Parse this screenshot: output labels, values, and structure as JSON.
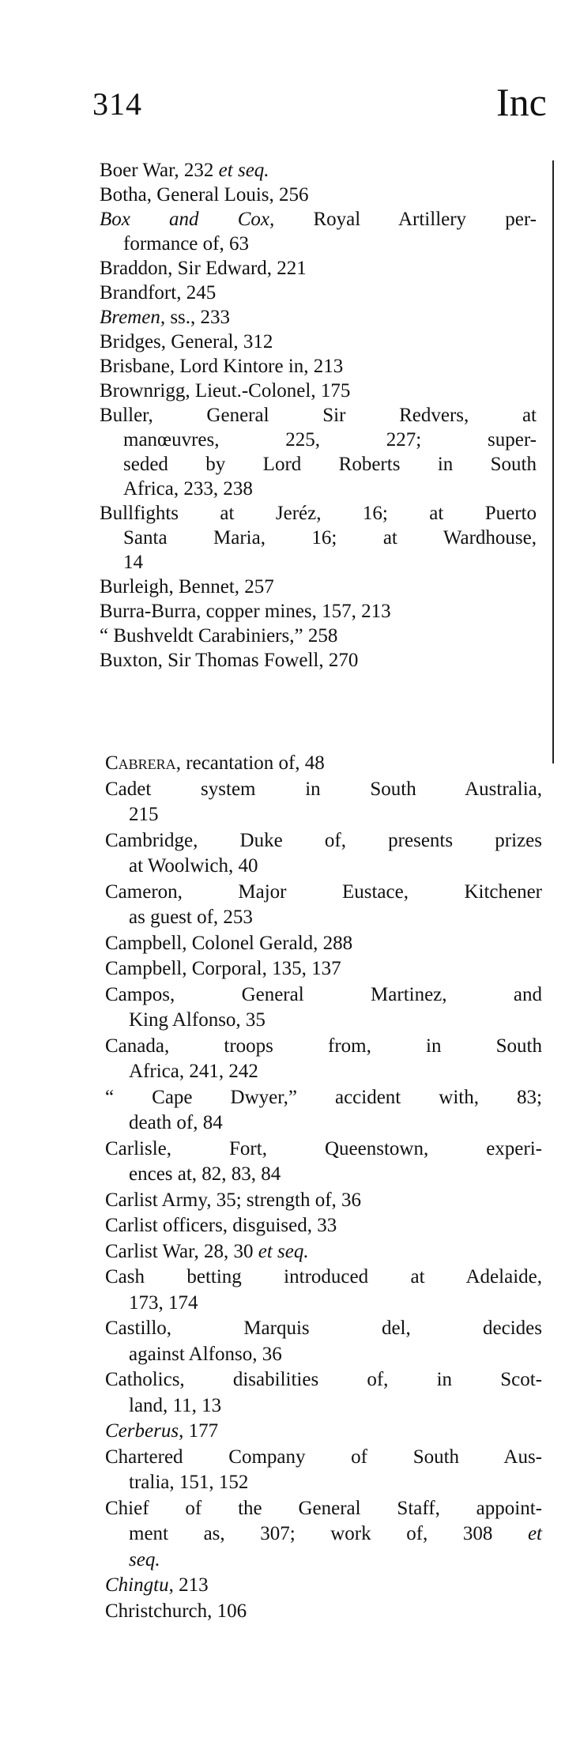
{
  "page_number": "314",
  "running_head": "Inc",
  "sections": [
    {
      "entries": [
        {
          "lines": [
            [
              "Boer War, 232 ",
              {
                "text": "et seq.",
                "italic": true
              }
            ]
          ]
        },
        {
          "lines": [
            [
              "Botha, General Louis, 256"
            ]
          ]
        },
        {
          "lines": [
            [
              {
                "text": "Box and Cox,",
                "italic": true
              },
              " Royal Artillery per-"
            ],
            [
              "formance of, 63"
            ]
          ]
        },
        {
          "lines": [
            [
              "Braddon, Sir Edward, 221"
            ]
          ]
        },
        {
          "lines": [
            [
              "Brandfort, 245"
            ]
          ]
        },
        {
          "lines": [
            [
              {
                "text": "Bremen,",
                "italic": true
              },
              " ss., 233"
            ]
          ]
        },
        {
          "lines": [
            [
              "Bridges, General, 312"
            ]
          ]
        },
        {
          "lines": [
            [
              "Brisbane, Lord Kintore in, 213"
            ]
          ]
        },
        {
          "lines": [
            [
              "Brownrigg, Lieut.-Colonel, 175"
            ]
          ]
        },
        {
          "lines": [
            [
              "Buller, General Sir Redvers, at"
            ],
            [
              "manœuvres, 225, 227; super-"
            ],
            [
              "seded by Lord Roberts in South"
            ],
            [
              "Africa, 233, 238"
            ]
          ]
        },
        {
          "lines": [
            [
              "Bullfights at Jeréz, 16; at Puerto"
            ],
            [
              "Santa Maria, 16; at Wardhouse,"
            ],
            [
              "14"
            ]
          ]
        },
        {
          "lines": [
            [
              "Burleigh, Bennet, 257"
            ]
          ]
        },
        {
          "lines": [
            [
              "Burra-Burra, copper mines, 157, 213"
            ]
          ]
        },
        {
          "lines": [
            [
              "“ Bushveldt Carabiniers,” 258"
            ]
          ]
        },
        {
          "lines": [
            [
              "Buxton, Sir Thomas Fowell, 270"
            ]
          ]
        }
      ]
    },
    {
      "entries": [
        {
          "lines": [
            [
              {
                "text": "Cabrera",
                "smallcaps": true
              },
              ", recantation of, 48"
            ]
          ]
        },
        {
          "lines": [
            [
              "Cadet system in South Australia,"
            ],
            [
              "215"
            ]
          ]
        },
        {
          "lines": [
            [
              "Cambridge, Duke of, presents prizes"
            ],
            [
              "at Woolwich, 40"
            ]
          ]
        },
        {
          "lines": [
            [
              "Cameron, Major Eustace, Kitchener"
            ],
            [
              "as guest of, 253"
            ]
          ]
        },
        {
          "lines": [
            [
              "Campbell, Colonel Gerald, 288"
            ]
          ]
        },
        {
          "lines": [
            [
              "Campbell, Corporal, 135, 137"
            ]
          ]
        },
        {
          "lines": [
            [
              "Campos, General Martinez, and"
            ],
            [
              "King Alfonso, 35"
            ]
          ]
        },
        {
          "lines": [
            [
              "Canada, troops from, in South"
            ],
            [
              "Africa, 241, 242"
            ]
          ]
        },
        {
          "lines": [
            [
              "“ Cape Dwyer,” accident with, 83;"
            ],
            [
              "death of, 84"
            ]
          ]
        },
        {
          "lines": [
            [
              "Carlisle, Fort, Queenstown, experi-"
            ],
            [
              "ences at, 82, 83, 84"
            ]
          ]
        },
        {
          "lines": [
            [
              "Carlist Army, 35; strength of, 36"
            ]
          ]
        },
        {
          "lines": [
            [
              "Carlist officers, disguised, 33"
            ]
          ]
        },
        {
          "lines": [
            [
              "Carlist War, 28, 30 ",
              {
                "text": "et seq.",
                "italic": true
              }
            ]
          ]
        },
        {
          "lines": [
            [
              "Cash betting introduced at Adelaide,"
            ],
            [
              "173, 174"
            ]
          ]
        },
        {
          "lines": [
            [
              "Castillo, Marquis del, decides"
            ],
            [
              "against Alfonso, 36"
            ]
          ]
        },
        {
          "lines": [
            [
              "Catholics, disabilities of, in Scot-"
            ],
            [
              "land, 11, 13"
            ]
          ]
        },
        {
          "lines": [
            [
              {
                "text": "Cerberus",
                "italic": true
              },
              ", 177"
            ]
          ]
        },
        {
          "lines": [
            [
              "Chartered Company of South Aus-"
            ],
            [
              "tralia, 151, 152"
            ]
          ]
        },
        {
          "lines": [
            [
              "Chief of the General Staff, appoint-"
            ],
            [
              "ment as, 307; work of, 308 ",
              {
                "text": "et",
                "italic": true
              }
            ],
            [
              {
                "text": "seq.",
                "italic": true
              }
            ]
          ]
        },
        {
          "lines": [
            [
              {
                "text": "Chingtu",
                "italic": true
              },
              ", 213"
            ]
          ]
        },
        {
          "lines": [
            [
              "Christchurch, 106"
            ]
          ]
        }
      ]
    }
  ]
}
